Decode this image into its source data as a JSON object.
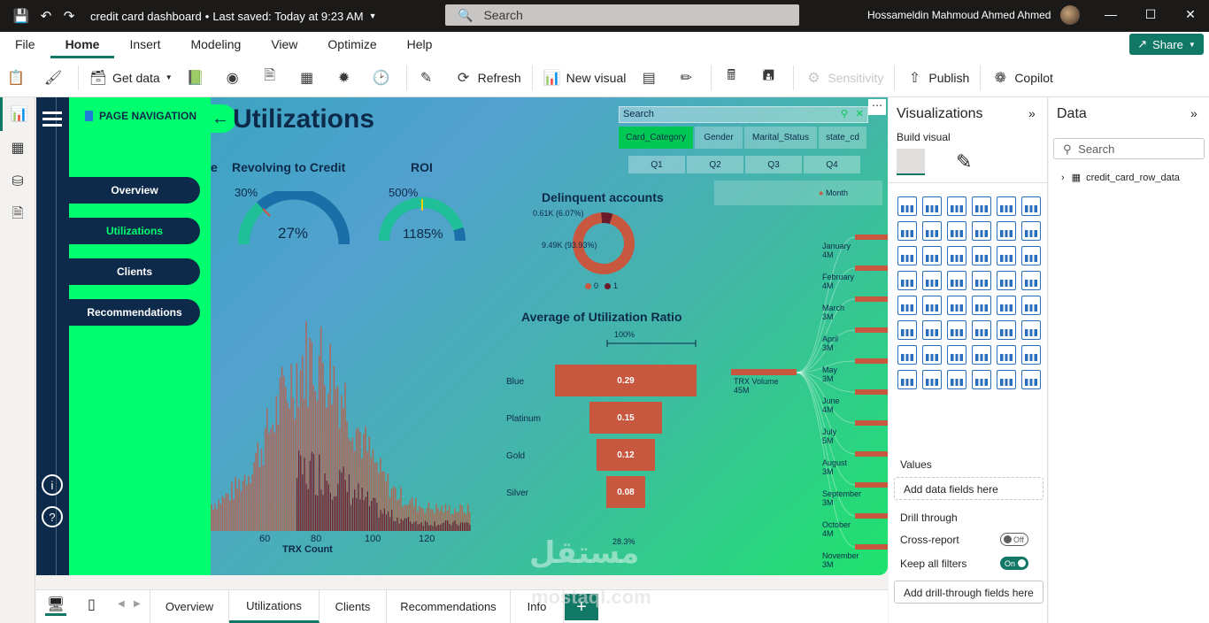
{
  "titlebar": {
    "file_title": "credit card dashboard",
    "save_status": "Last saved: Today at 9:23 AM",
    "search_placeholder": "Search",
    "user_name": "Hossameldin Mahmoud Ahmed Ahmed"
  },
  "menu": {
    "items": [
      "File",
      "Home",
      "Insert",
      "Modeling",
      "View",
      "Optimize",
      "Help"
    ],
    "active": "Home",
    "share_label": "Share"
  },
  "ribbon": {
    "get_data": "Get data",
    "refresh": "Refresh",
    "new_visual": "New visual",
    "sensitivity": "Sensitivity",
    "publish": "Publish",
    "copilot": "Copilot"
  },
  "report": {
    "page_title": "Utilizations",
    "nav_header": "PAGE NAVIGATION",
    "nav_buttons": [
      "Overview",
      "Utilizations",
      "Clients",
      "Recommendations"
    ],
    "kpis": [
      {
        "title": "Revolving to Credit",
        "label": "30%",
        "value": "27%",
        "fraction": 0.27
      },
      {
        "title": "ROI",
        "label": "500%",
        "value": "1185%",
        "fraction": 0.9
      }
    ],
    "kpi_partial_title": "e",
    "slicer_search": "Search",
    "slicer_fields": [
      "Card_Category",
      "Gender",
      "Marital_Status",
      "state_cd"
    ],
    "quarters": [
      "Q1",
      "Q2",
      "Q3",
      "Q4"
    ],
    "month_header": "Month",
    "colors": {
      "nav_green": "#00ff6f",
      "navy": "#0d2a4a",
      "bar_orange": "#c8573f",
      "bar_maroon": "#6b1a2a"
    }
  },
  "chart_data": [
    {
      "type": "pie",
      "title": "Delinquent accounts",
      "categories": [
        "0",
        "1"
      ],
      "values": [
        9490,
        610
      ],
      "labels": [
        "9.49K (93.93%)",
        "0.61K (6.07%)"
      ],
      "legend_items": [
        "0",
        "1"
      ],
      "colors": [
        "#c8573f",
        "#6b1a2a"
      ]
    },
    {
      "type": "bar",
      "title": "Average of Utilization Ratio",
      "categories": [
        "Blue",
        "Platinum",
        "Gold",
        "Silver"
      ],
      "values": [
        0.29,
        0.15,
        0.12,
        0.08
      ],
      "top_label": "100%",
      "bottom_label": "28.3%"
    },
    {
      "type": "bar",
      "title": "",
      "xlabel": "TRX Count",
      "x_ticks": [
        "60",
        "80",
        "100",
        "120"
      ]
    },
    {
      "type": "bar",
      "title": "",
      "root": {
        "label": "TRX Volume",
        "value": "45M"
      },
      "categories": [
        "January",
        "February",
        "March",
        "April",
        "May",
        "June",
        "July",
        "August",
        "September",
        "October",
        "November"
      ],
      "values_label": [
        "4M",
        "4M",
        "3M",
        "3M",
        "3M",
        "4M",
        "5M",
        "3M",
        "3M",
        "4M",
        "3M"
      ],
      "values": [
        4,
        4,
        3,
        3,
        3,
        4,
        5,
        3,
        3,
        4,
        3
      ]
    }
  ],
  "visualizations_pane": {
    "title": "Visualizations",
    "build_visual": "Build visual",
    "values_label": "Values",
    "values_placeholder": "Add data fields here",
    "drill_through": "Drill through",
    "cross_report": "Cross-report",
    "cross_report_state": "Off",
    "keep_filters": "Keep all filters",
    "keep_filters_state": "On",
    "drill_placeholder": "Add drill-through fields here"
  },
  "data_pane": {
    "title": "Data",
    "search_placeholder": "Search",
    "table_name": "credit_card_row_data"
  },
  "page_tabs": {
    "tabs": [
      "Overview",
      "Utilizations",
      "Clients",
      "Recommendations",
      "Info"
    ],
    "active": "Utilizations"
  },
  "watermark": {
    "text": "mostaql.com"
  }
}
